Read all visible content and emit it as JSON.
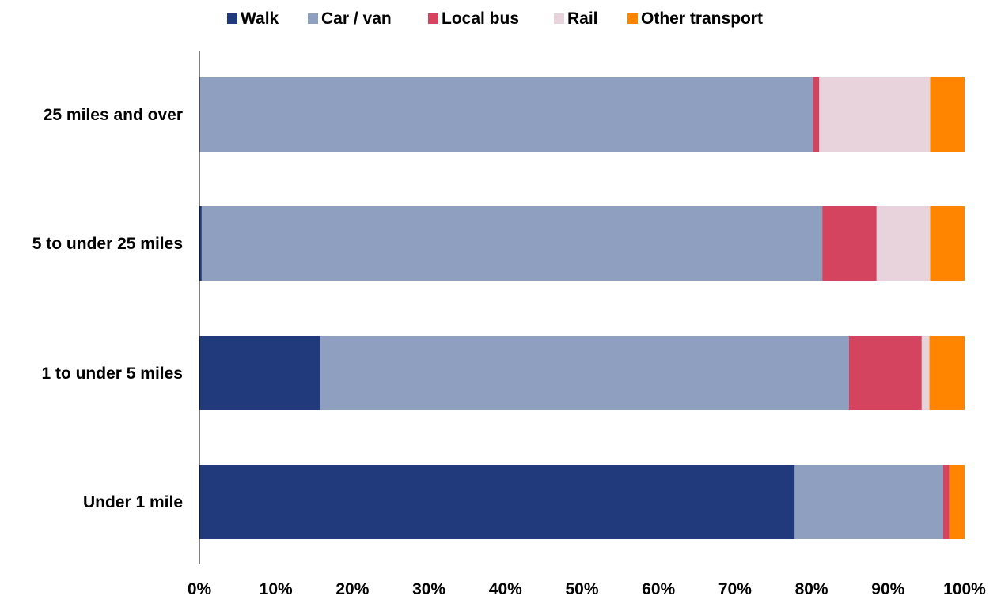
{
  "chart_data": {
    "type": "bar",
    "orientation": "horizontal",
    "stacked": "percent",
    "categories": [
      "25 miles and over",
      "5 to under 25 miles",
      "1 to under 5 miles",
      "Under 1 mile"
    ],
    "series": [
      {
        "name": "Walk",
        "color": "#203a7c",
        "values": [
          0,
          0.3,
          15.8,
          77.8
        ]
      },
      {
        "name": "Car / van",
        "color": "#8f9fbf",
        "values": [
          80.2,
          81.1,
          69.1,
          19.4
        ]
      },
      {
        "name": "Local bus",
        "color": "#d4445e",
        "values": [
          0.8,
          7.1,
          9.5,
          0.8
        ]
      },
      {
        "name": "Rail",
        "color": "#e8d3dd",
        "values": [
          14.5,
          7.0,
          1.0,
          0
        ]
      },
      {
        "name": "Other transport",
        "color": "#ff8400",
        "values": [
          4.5,
          4.5,
          4.6,
          2.0
        ]
      }
    ],
    "x_ticks": [
      "0%",
      "10%",
      "20%",
      "30%",
      "40%",
      "50%",
      "60%",
      "70%",
      "80%",
      "90%",
      "100%"
    ],
    "xlim": [
      0,
      100
    ],
    "grid": false,
    "legend_position": "top-center",
    "title": "",
    "xlabel": "",
    "ylabel": ""
  }
}
